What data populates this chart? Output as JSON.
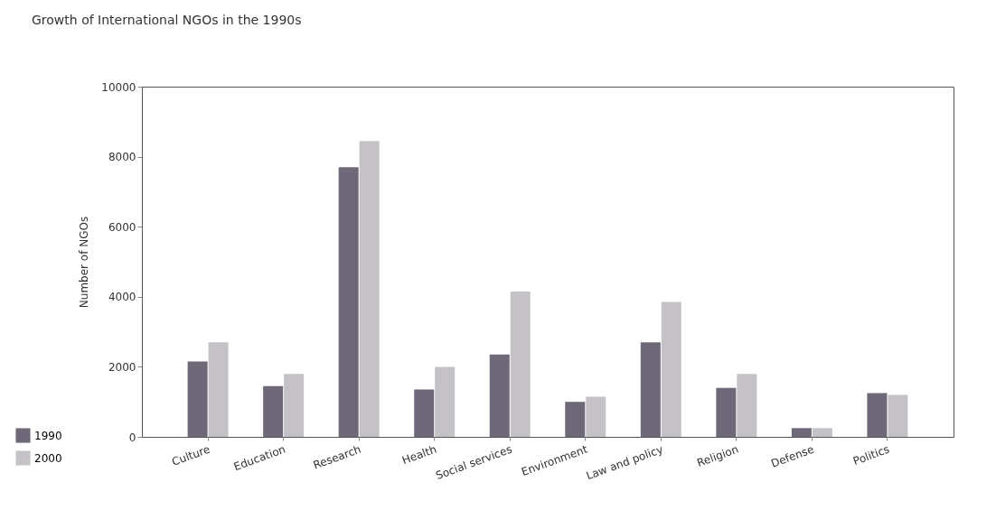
{
  "chart_data": {
    "type": "bar",
    "title": "Growth of International NGOs in the 1990s",
    "ylabel": "Number of NGOs",
    "categories": [
      "Culture",
      "Education",
      "Research",
      "Health",
      "Social services",
      "Environment",
      "Law and policy",
      "Religion",
      "Defense",
      "Politics"
    ],
    "series": [
      {
        "name": "1990",
        "color": "#6e6878",
        "values": [
          2150,
          1450,
          7700,
          1350,
          2350,
          1000,
          2700,
          1400,
          250,
          1250
        ]
      },
      {
        "name": "2000",
        "color": "#c4c2c6",
        "values": [
          2700,
          1800,
          8450,
          2000,
          4150,
          1150,
          3850,
          1800,
          250,
          1200
        ]
      }
    ],
    "ylim": [
      0,
      10000
    ],
    "yticks": [
      0,
      2000,
      4000,
      6000,
      8000,
      10000
    ],
    "grid": false,
    "legend": "bottom left"
  }
}
